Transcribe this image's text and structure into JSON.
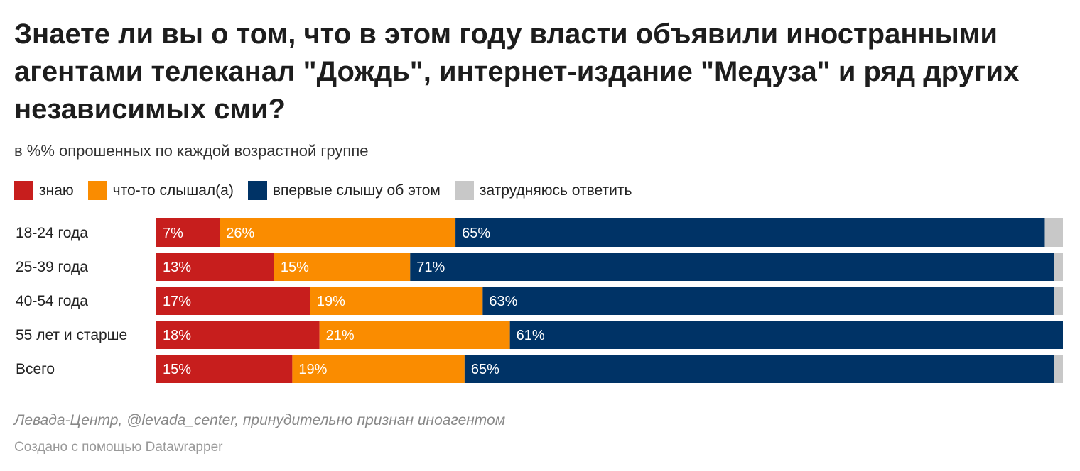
{
  "header": {
    "title": "Знаете ли вы о том, что в этом году власти объявили иностранными агентами телеканал \"Дождь\", интернет-издание \"Медуза\" и ряд других независимых сми?",
    "subtitle": "в %% опрошенных по каждой возрастной группе"
  },
  "legend": [
    {
      "label": "знаю",
      "color": "#c71e1d"
    },
    {
      "label": "что-то слышал(а)",
      "color": "#fa8c00"
    },
    {
      "label": "впервые слышу об этом",
      "color": "#003366"
    },
    {
      "label": "затрудняюсь ответить",
      "color": "#c8c8c8"
    }
  ],
  "chart_data": {
    "type": "bar",
    "orientation": "horizontal",
    "stacked": true,
    "categories": [
      "18-24 года",
      "25-39 года",
      "40-54 года",
      "55 лет и старше",
      "Всего"
    ],
    "series": [
      {
        "name": "знаю",
        "color": "#c71e1d",
        "values": [
          7,
          13,
          17,
          18,
          15
        ]
      },
      {
        "name": "что-то слышал(а)",
        "color": "#fa8c00",
        "values": [
          26,
          15,
          19,
          21,
          19
        ]
      },
      {
        "name": "впервые слышу об этом",
        "color": "#003366",
        "values": [
          65,
          71,
          63,
          61,
          65
        ]
      },
      {
        "name": "затрудняюсь ответить",
        "color": "#c8c8c8",
        "values": [
          2,
          1,
          1,
          0,
          1
        ]
      }
    ],
    "value_labels": [
      [
        "7%",
        "26%",
        "65%",
        ""
      ],
      [
        "13%",
        "15%",
        "71%",
        ""
      ],
      [
        "17%",
        "19%",
        "63%",
        ""
      ],
      [
        "18%",
        "21%",
        "61%",
        ""
      ],
      [
        "15%",
        "19%",
        "65%",
        ""
      ]
    ],
    "xlim": [
      0,
      100
    ]
  },
  "footer": {
    "source": "Левада-Центр, @levada_center, принудительно признан иноагентом",
    "credit": "Создано с помощью Datawrapper"
  }
}
